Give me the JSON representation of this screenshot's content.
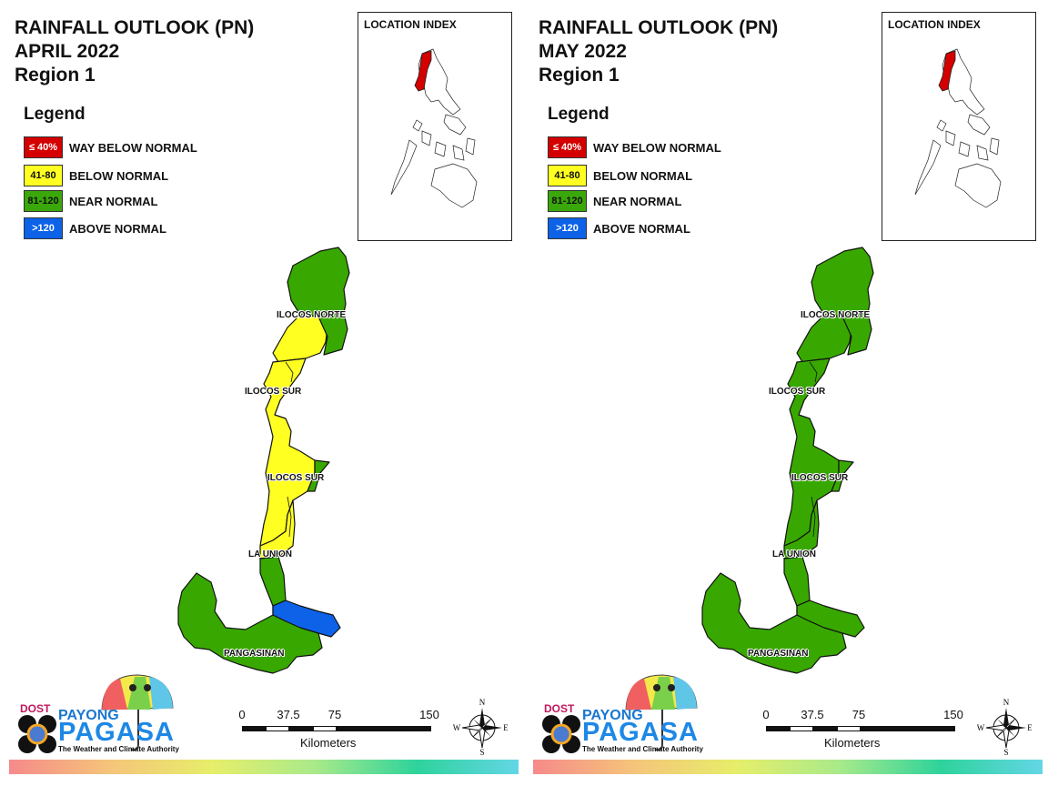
{
  "panels": [
    {
      "title_line1": "RAINFALL OUTLOOK (PN)",
      "month": "APRIL 2022",
      "region": "Region 1",
      "legend_title": "Legend",
      "location_index_title": "LOCATION INDEX",
      "province_labels": [
        "ILOCOS NORTE",
        "ILOCOS SUR",
        "ILOCOS SUR",
        "LA UNION",
        "PANGASINAN"
      ],
      "province_categories": {
        "ilocos_norte_north": "near",
        "ilocos_norte_central": "below",
        "ilocos_norte_east": "near",
        "ilocos_sur": "below",
        "ilocos_sur_east": "near",
        "la_union": "below",
        "la_union_south": "near",
        "pangasinan_west": "near",
        "pangasinan_east": "above"
      }
    },
    {
      "title_line1": "RAINFALL OUTLOOK (PN)",
      "month": "MAY 2022",
      "region": "Region 1",
      "legend_title": "Legend",
      "location_index_title": "LOCATION INDEX",
      "province_labels": [
        "ILOCOS NORTE",
        "ILOCOS SUR",
        "ILOCOS SUR",
        "LA UNION",
        "PANGASINAN"
      ],
      "province_categories": {
        "ilocos_norte_north": "near",
        "ilocos_norte_central": "near",
        "ilocos_norte_east": "near",
        "ilocos_sur": "near",
        "ilocos_sur_east": "near",
        "la_union": "near",
        "la_union_south": "near",
        "pangasinan_west": "near",
        "pangasinan_east": "near"
      }
    }
  ],
  "legend": [
    {
      "range": "≤ 40%",
      "label": "WAY BELOW NORMAL",
      "color": "#d40000",
      "text_color": "#ffffff"
    },
    {
      "range": "41-80",
      "label": "BELOW NORMAL",
      "color": "#ffff22",
      "text_color": "#111111"
    },
    {
      "range": "81-120",
      "label": "NEAR NORMAL",
      "color": "#3aa80a",
      "text_color": "#111111"
    },
    {
      "range": ">120",
      "label": "ABOVE NORMAL",
      "color": "#0d62e8",
      "text_color": "#ffffff"
    }
  ],
  "category_colors": {
    "waybelow": "#d40000",
    "below": "#ffff22",
    "near": "#38a800",
    "above": "#0d62e8"
  },
  "scale": {
    "ticks": [
      "0",
      "37.5",
      "75",
      "150"
    ],
    "unit": "Kilometers"
  },
  "compass": {
    "n": "N",
    "s": "S",
    "e": "E",
    "w": "W"
  },
  "logo": {
    "dost": "DOST",
    "payong": "PAYONG",
    "pagasa": "PAGASA",
    "tagline": "The Weather and Climate Authority"
  },
  "icons": [
    "compass-rose-icon",
    "umbrella-logo-icon",
    "pagasa-seal-icon"
  ]
}
